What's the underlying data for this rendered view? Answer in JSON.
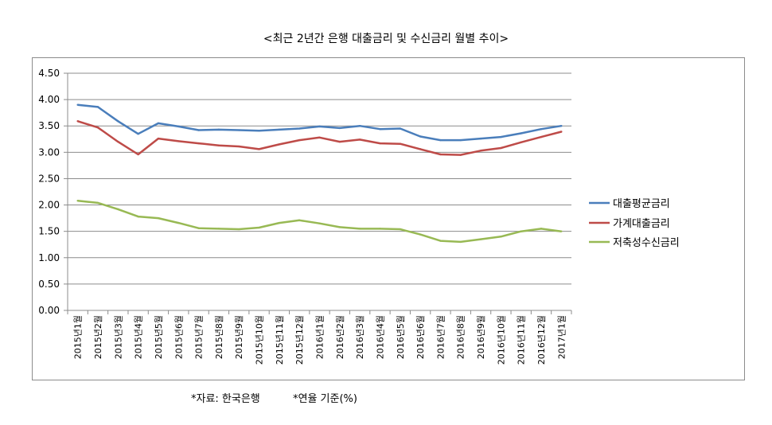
{
  "chart_data": {
    "type": "line",
    "title": "<최근 2년간 은행 대출금리 및 수신금리 월별 추이>",
    "xlabel": "",
    "ylabel": "",
    "ylim": [
      0,
      4.5
    ],
    "yticks": [
      "0.00",
      "0.50",
      "1.00",
      "1.50",
      "2.00",
      "2.50",
      "3.00",
      "3.50",
      "4.00",
      "4.50"
    ],
    "grid": true,
    "legend_position": "right",
    "categories": [
      "2015년1월",
      "2015년2월",
      "2015년3월",
      "2015년4월",
      "2015년5월",
      "2015년6월",
      "2015년7월",
      "2015년8월",
      "2015년9월",
      "2015년10월",
      "2015년11월",
      "2015년12월",
      "2016년1월",
      "2016년2월",
      "2016년3월",
      "2016년4월",
      "2016년5월",
      "2016년6월",
      "2016년7월",
      "2016년8월",
      "2016년9월",
      "2016년10월",
      "2016년11월",
      "2016년12월",
      "2017년1월"
    ],
    "series": [
      {
        "name": "대출평균금리",
        "color": "#4a7ebb",
        "values": [
          3.9,
          3.86,
          3.59,
          3.35,
          3.55,
          3.49,
          3.42,
          3.43,
          3.42,
          3.41,
          3.43,
          3.45,
          3.49,
          3.46,
          3.5,
          3.44,
          3.45,
          3.3,
          3.23,
          3.23,
          3.26,
          3.29,
          3.36,
          3.44,
          3.5
        ]
      },
      {
        "name": "가계대출금리",
        "color": "#be4b48",
        "values": [
          3.59,
          3.47,
          3.2,
          2.96,
          3.26,
          3.21,
          3.17,
          3.13,
          3.11,
          3.06,
          3.15,
          3.23,
          3.28,
          3.2,
          3.24,
          3.17,
          3.16,
          3.06,
          2.96,
          2.95,
          3.03,
          3.08,
          3.19,
          3.29,
          3.39
        ]
      },
      {
        "name": "저축성수신금리",
        "color": "#98b954",
        "values": [
          2.08,
          2.04,
          1.92,
          1.78,
          1.75,
          1.66,
          1.56,
          1.55,
          1.54,
          1.57,
          1.66,
          1.71,
          1.65,
          1.58,
          1.55,
          1.55,
          1.54,
          1.44,
          1.32,
          1.3,
          1.35,
          1.4,
          1.5,
          1.55,
          1.5
        ]
      }
    ]
  },
  "footnotes": {
    "source": "*자료: 한국은행",
    "unit": "*연율 기준(%)"
  }
}
